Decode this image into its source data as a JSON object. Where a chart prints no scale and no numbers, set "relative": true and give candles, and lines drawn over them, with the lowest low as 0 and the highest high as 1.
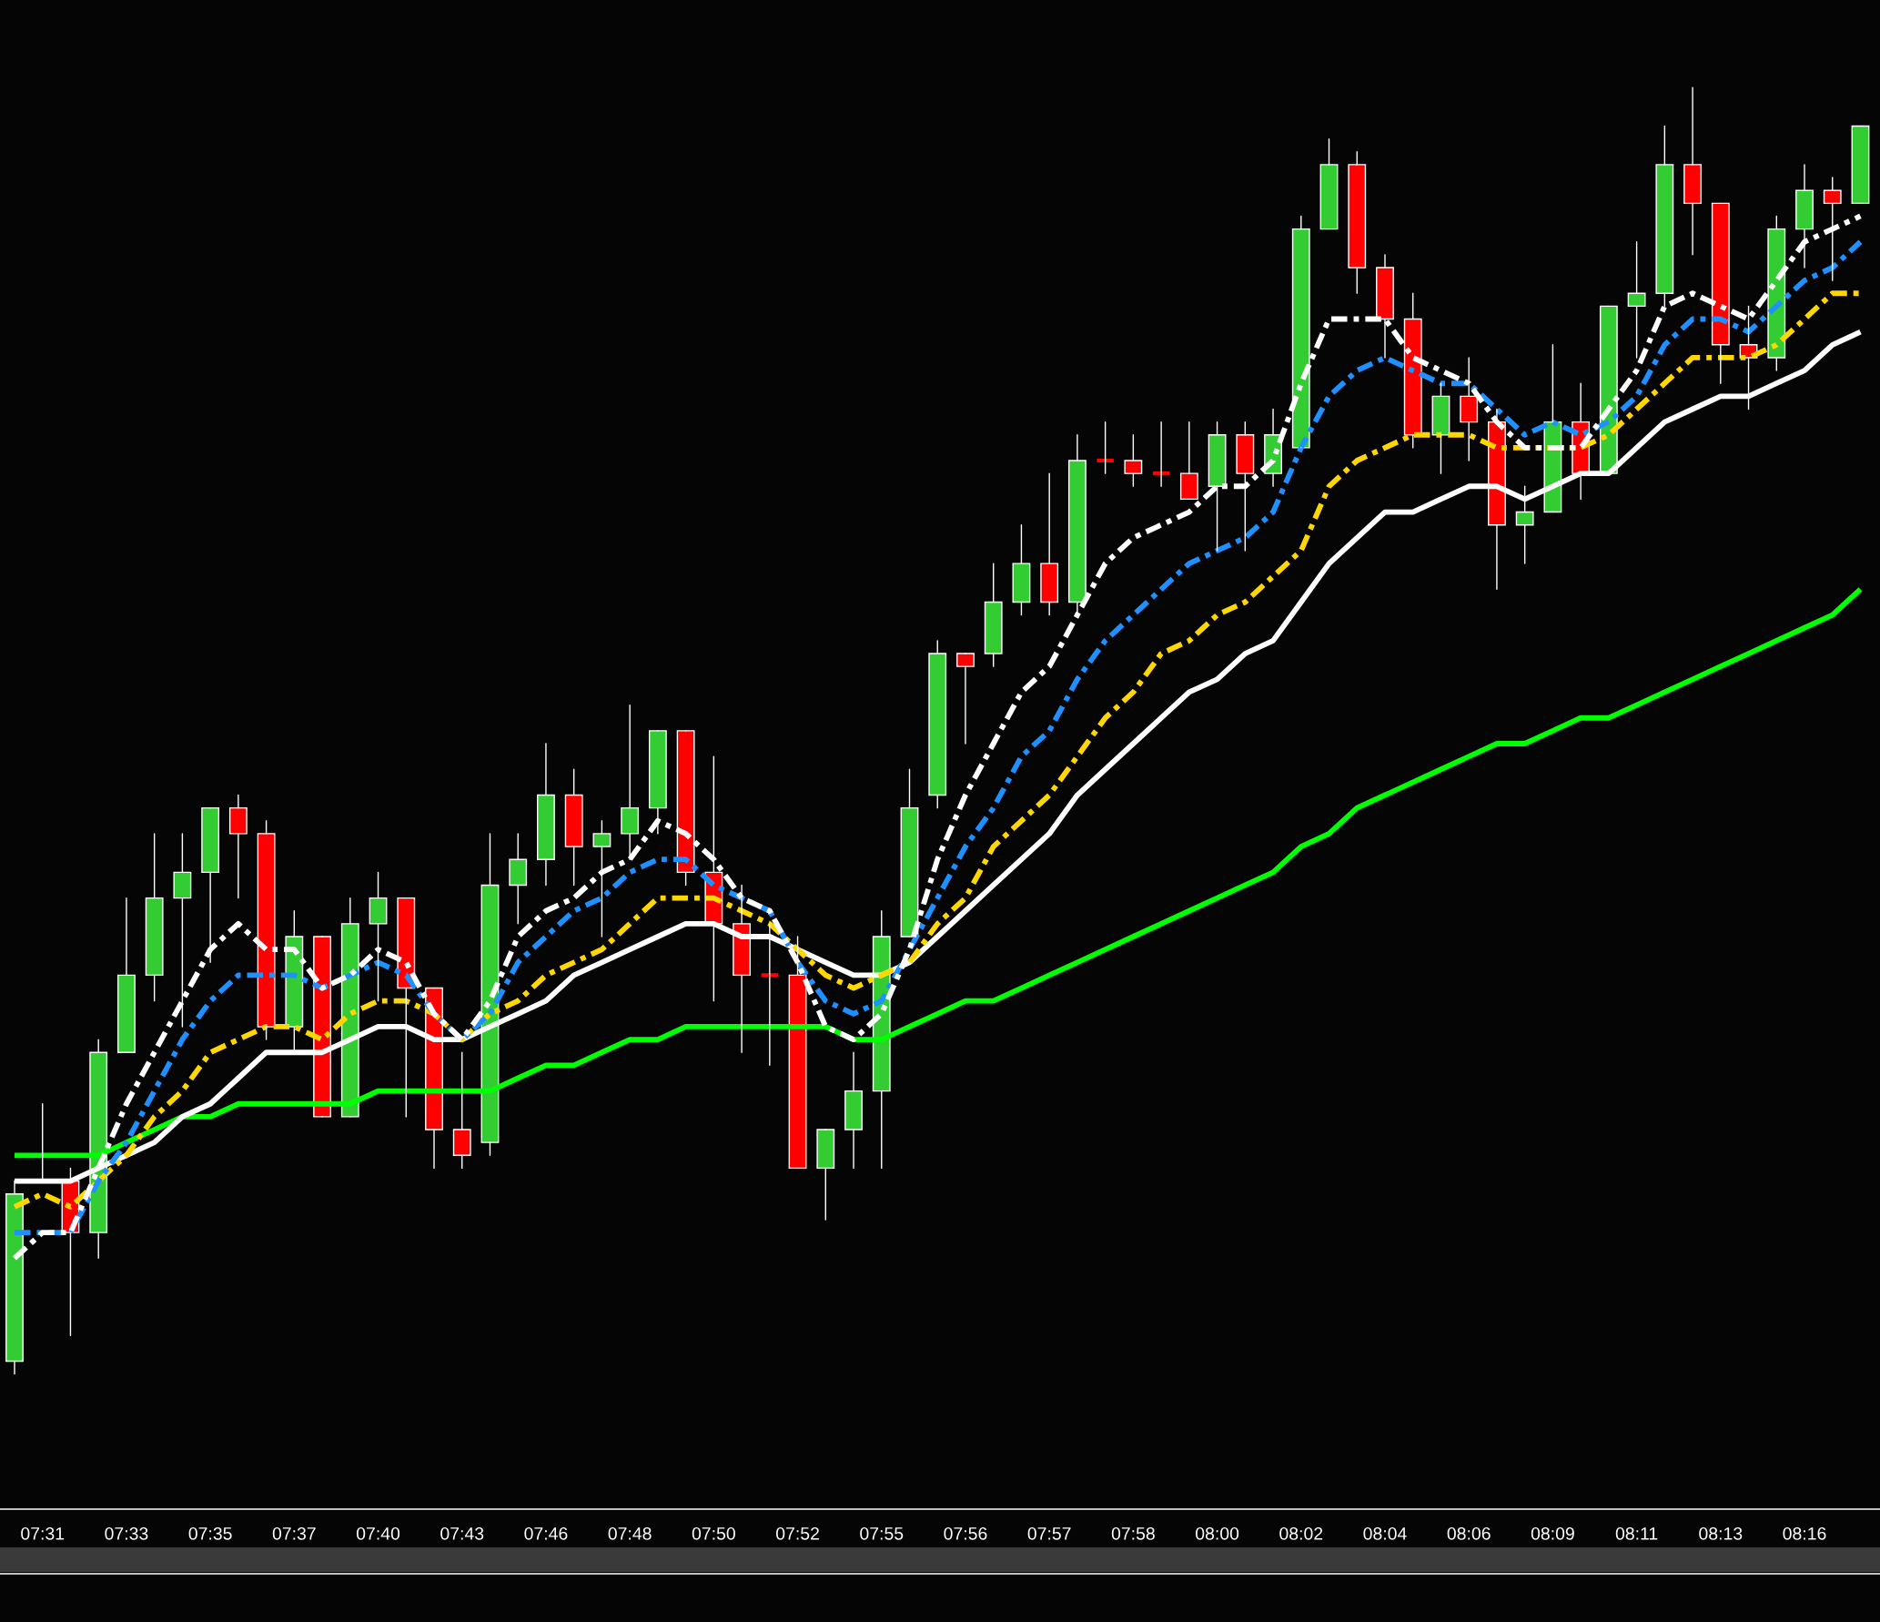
{
  "chart_data": {
    "type": "candlestick",
    "relative": true,
    "grid": false,
    "legend": false,
    "categories": [
      null,
      "07:31",
      null,
      null,
      "07:33",
      null,
      null,
      "07:35",
      null,
      null,
      "07:37",
      null,
      null,
      "07:40",
      null,
      null,
      "07:43",
      null,
      null,
      "07:46",
      null,
      null,
      "07:48",
      null,
      null,
      "07:50",
      null,
      null,
      "07:52",
      null,
      null,
      "07:55",
      null,
      null,
      "07:56",
      null,
      null,
      "07:57",
      null,
      null,
      "07:58",
      null,
      null,
      "08:00",
      null,
      null,
      "08:02",
      null,
      null,
      "08:04",
      null,
      null,
      "08:06",
      null,
      null,
      "08:09",
      null,
      null,
      "08:11",
      null,
      null,
      "08:13",
      null,
      null,
      "08:16",
      null,
      null
    ],
    "ohlc": [
      [
        0.01,
        0.15,
        0,
        0.14
      ],
      [
        0.15,
        0.21,
        0.15,
        0.15
      ],
      [
        0.15,
        0.16,
        0.03,
        0.11
      ],
      [
        0.11,
        0.26,
        0.09,
        0.25
      ],
      [
        0.25,
        0.37,
        0.25,
        0.31
      ],
      [
        0.31,
        0.42,
        0.29,
        0.37
      ],
      [
        0.37,
        0.42,
        0.27,
        0.39
      ],
      [
        0.39,
        0.44,
        0.32,
        0.44
      ],
      [
        0.44,
        0.45,
        0.37,
        0.42
      ],
      [
        0.42,
        0.43,
        0.26,
        0.27
      ],
      [
        0.27,
        0.36,
        0.25,
        0.34
      ],
      [
        0.34,
        0.34,
        0.2,
        0.2
      ],
      [
        0.2,
        0.37,
        0.2,
        0.35
      ],
      [
        0.35,
        0.39,
        0.29,
        0.37
      ],
      [
        0.37,
        0.37,
        0.2,
        0.3
      ],
      [
        0.3,
        0.3,
        0.16,
        0.19
      ],
      [
        0.19,
        0.25,
        0.16,
        0.17
      ],
      [
        0.18,
        0.42,
        0.17,
        0.38
      ],
      [
        0.38,
        0.42,
        0.35,
        0.4
      ],
      [
        0.4,
        0.49,
        0.38,
        0.45
      ],
      [
        0.45,
        0.47,
        0.38,
        0.41
      ],
      [
        0.41,
        0.43,
        0.34,
        0.42
      ],
      [
        0.42,
        0.52,
        0.4,
        0.44
      ],
      [
        0.44,
        0.5,
        0.42,
        0.5
      ],
      [
        0.5,
        0.5,
        0.38,
        0.39
      ],
      [
        0.39,
        0.48,
        0.29,
        0.35
      ],
      [
        0.35,
        0.38,
        0.25,
        0.31
      ],
      [
        0.31,
        0.35,
        0.24,
        0.31
      ],
      [
        0.31,
        0.34,
        0.16,
        0.16
      ],
      [
        0.16,
        0.19,
        0.12,
        0.19
      ],
      [
        0.19,
        0.25,
        0.16,
        0.22
      ],
      [
        0.22,
        0.36,
        0.16,
        0.34
      ],
      [
        0.34,
        0.47,
        0.34,
        0.44
      ],
      [
        0.45,
        0.57,
        0.44,
        0.56
      ],
      [
        0.56,
        0.56,
        0.49,
        0.55
      ],
      [
        0.56,
        0.63,
        0.55,
        0.6
      ],
      [
        0.6,
        0.66,
        0.59,
        0.63
      ],
      [
        0.63,
        0.7,
        0.59,
        0.6
      ],
      [
        0.6,
        0.73,
        0.59,
        0.71
      ],
      [
        0.71,
        0.74,
        0.7,
        0.71
      ],
      [
        0.71,
        0.73,
        0.69,
        0.7
      ],
      [
        0.7,
        0.74,
        0.69,
        0.7
      ],
      [
        0.7,
        0.74,
        0.68,
        0.68
      ],
      [
        0.69,
        0.74,
        0.64,
        0.73
      ],
      [
        0.73,
        0.74,
        0.64,
        0.7
      ],
      [
        0.7,
        0.75,
        0.69,
        0.73
      ],
      [
        0.72,
        0.9,
        0.72,
        0.89
      ],
      [
        0.89,
        0.96,
        0.89,
        0.94
      ],
      [
        0.94,
        0.95,
        0.84,
        0.86
      ],
      [
        0.86,
        0.87,
        0.79,
        0.82
      ],
      [
        0.82,
        0.84,
        0.72,
        0.73
      ],
      [
        0.73,
        0.77,
        0.7,
        0.76
      ],
      [
        0.76,
        0.79,
        0.71,
        0.74
      ],
      [
        0.74,
        0.75,
        0.61,
        0.66
      ],
      [
        0.66,
        0.69,
        0.63,
        0.67
      ],
      [
        0.67,
        0.8,
        0.67,
        0.74
      ],
      [
        0.74,
        0.77,
        0.68,
        0.7
      ],
      [
        0.7,
        0.83,
        0.7,
        0.83
      ],
      [
        0.83,
        0.88,
        0.79,
        0.84
      ],
      [
        0.84,
        0.97,
        0.83,
        0.94
      ],
      [
        0.94,
        1.0,
        0.87,
        0.91
      ],
      [
        0.91,
        0.91,
        0.77,
        0.8
      ],
      [
        0.8,
        0.83,
        0.75,
        0.79
      ],
      [
        0.79,
        0.9,
        0.78,
        0.89
      ],
      [
        0.89,
        0.94,
        0.86,
        0.92
      ],
      [
        0.92,
        0.93,
        0.85,
        0.91
      ],
      [
        0.91,
        0.97,
        0.91,
        0.97
      ]
    ],
    "colors": [
      "#33cc33",
      "#33cc33",
      "#ff0000",
      "#33cc33",
      "#33cc33",
      "#33cc33",
      "#33cc33",
      "#33cc33",
      "#ff0000",
      "#ff0000",
      "#33cc33",
      "#ff0000",
      "#33cc33",
      "#33cc33",
      "#ff0000",
      "#ff0000",
      "#ff0000",
      "#33cc33",
      "#33cc33",
      "#33cc33",
      "#ff0000",
      "#33cc33",
      "#33cc33",
      "#33cc33",
      "#ff0000",
      "#ff0000",
      "#ff0000",
      "#ff0000",
      "#ff0000",
      "#33cc33",
      "#33cc33",
      "#33cc33",
      "#33cc33",
      "#33cc33",
      "#ff0000",
      "#33cc33",
      "#33cc33",
      "#ff0000",
      "#33cc33",
      "#ff0000",
      "#ff0000",
      "#ff0000",
      "#ff0000",
      "#33cc33",
      "#ff0000",
      "#33cc33",
      "#33cc33",
      "#33cc33",
      "#ff0000",
      "#ff0000",
      "#ff0000",
      "#33cc33",
      "#ff0000",
      "#ff0000",
      "#33cc33",
      "#33cc33",
      "#ff0000",
      "#33cc33",
      "#33cc33",
      "#33cc33",
      "#ff0000",
      "#ff0000",
      "#ff0000",
      "#33cc33",
      "#33cc33",
      "#ff0000",
      "#33cc33"
    ],
    "series": [
      {
        "type": "line",
        "color": "#00ff00",
        "line_style": "solid",
        "values": [
          0.17,
          0.17,
          0.17,
          0.17,
          0.18,
          0.19,
          0.2,
          0.2,
          0.21,
          0.21,
          0.21,
          0.21,
          0.21,
          0.22,
          0.22,
          0.22,
          0.22,
          0.22,
          0.23,
          0.24,
          0.24,
          0.25,
          0.26,
          0.26,
          0.27,
          0.27,
          0.27,
          0.27,
          0.27,
          0.27,
          0.26,
          0.26,
          0.27,
          0.28,
          0.29,
          0.29,
          0.3,
          0.31,
          0.32,
          0.33,
          0.34,
          0.35,
          0.36,
          0.37,
          0.38,
          0.39,
          0.41,
          0.42,
          0.44,
          0.45,
          0.46,
          0.47,
          0.48,
          0.49,
          0.49,
          0.5,
          0.51,
          0.51,
          0.52,
          0.53,
          0.54,
          0.55,
          0.56,
          0.57,
          0.58,
          0.59,
          0.61
        ]
      },
      {
        "type": "line",
        "color": "#ffffff",
        "line_style": "solid",
        "values": [
          0.15,
          0.15,
          0.15,
          0.16,
          0.17,
          0.18,
          0.2,
          0.21,
          0.23,
          0.25,
          0.25,
          0.25,
          0.26,
          0.27,
          0.27,
          0.26,
          0.26,
          0.27,
          0.28,
          0.29,
          0.31,
          0.32,
          0.33,
          0.34,
          0.35,
          0.35,
          0.34,
          0.34,
          0.33,
          0.32,
          0.31,
          0.31,
          0.32,
          0.34,
          0.36,
          0.38,
          0.4,
          0.42,
          0.45,
          0.47,
          0.49,
          0.51,
          0.53,
          0.54,
          0.56,
          0.57,
          0.6,
          0.63,
          0.65,
          0.67,
          0.67,
          0.68,
          0.69,
          0.69,
          0.68,
          0.69,
          0.7,
          0.7,
          0.72,
          0.74,
          0.75,
          0.76,
          0.76,
          0.77,
          0.78,
          0.8,
          0.81
        ]
      },
      {
        "type": "line",
        "color": "#ffd700",
        "line_style": "dashed",
        "values": [
          0.13,
          0.14,
          0.13,
          0.15,
          0.17,
          0.2,
          0.22,
          0.25,
          0.26,
          0.27,
          0.27,
          0.26,
          0.28,
          0.29,
          0.29,
          0.28,
          0.26,
          0.28,
          0.29,
          0.31,
          0.32,
          0.33,
          0.35,
          0.37,
          0.37,
          0.37,
          0.36,
          0.35,
          0.33,
          0.31,
          0.3,
          0.31,
          0.32,
          0.35,
          0.37,
          0.41,
          0.43,
          0.45,
          0.48,
          0.51,
          0.53,
          0.56,
          0.57,
          0.59,
          0.6,
          0.62,
          0.64,
          0.69,
          0.71,
          0.72,
          0.73,
          0.73,
          0.73,
          0.72,
          0.72,
          0.72,
          0.72,
          0.73,
          0.75,
          0.77,
          0.79,
          0.79,
          0.79,
          0.8,
          0.82,
          0.84,
          0.84
        ]
      },
      {
        "type": "line",
        "color": "#1e90ff",
        "line_style": "dashed",
        "values": [
          0.11,
          0.11,
          0.11,
          0.15,
          0.18,
          0.22,
          0.26,
          0.29,
          0.31,
          0.31,
          0.31,
          0.3,
          0.31,
          0.32,
          0.31,
          0.28,
          0.26,
          0.28,
          0.32,
          0.34,
          0.36,
          0.37,
          0.39,
          0.4,
          0.4,
          0.38,
          0.37,
          0.36,
          0.32,
          0.29,
          0.28,
          0.29,
          0.33,
          0.37,
          0.41,
          0.44,
          0.48,
          0.5,
          0.54,
          0.57,
          0.59,
          0.61,
          0.63,
          0.64,
          0.65,
          0.67,
          0.72,
          0.76,
          0.78,
          0.79,
          0.78,
          0.77,
          0.77,
          0.75,
          0.73,
          0.74,
          0.73,
          0.74,
          0.76,
          0.8,
          0.82,
          0.82,
          0.81,
          0.83,
          0.85,
          0.86,
          0.88
        ]
      },
      {
        "type": "line",
        "color": "#ffffff",
        "line_style": "dashed",
        "values": [
          0.09,
          0.11,
          0.11,
          0.16,
          0.21,
          0.25,
          0.29,
          0.33,
          0.35,
          0.33,
          0.33,
          0.3,
          0.31,
          0.33,
          0.32,
          0.28,
          0.26,
          0.29,
          0.34,
          0.36,
          0.37,
          0.39,
          0.4,
          0.43,
          0.42,
          0.4,
          0.37,
          0.36,
          0.32,
          0.27,
          0.26,
          0.28,
          0.33,
          0.4,
          0.45,
          0.49,
          0.53,
          0.55,
          0.59,
          0.63,
          0.65,
          0.66,
          0.67,
          0.69,
          0.69,
          0.71,
          0.77,
          0.82,
          0.82,
          0.82,
          0.79,
          0.78,
          0.77,
          0.74,
          0.72,
          0.72,
          0.72,
          0.75,
          0.78,
          0.83,
          0.84,
          0.83,
          0.82,
          0.85,
          0.88,
          0.89,
          0.9
        ]
      }
    ]
  }
}
